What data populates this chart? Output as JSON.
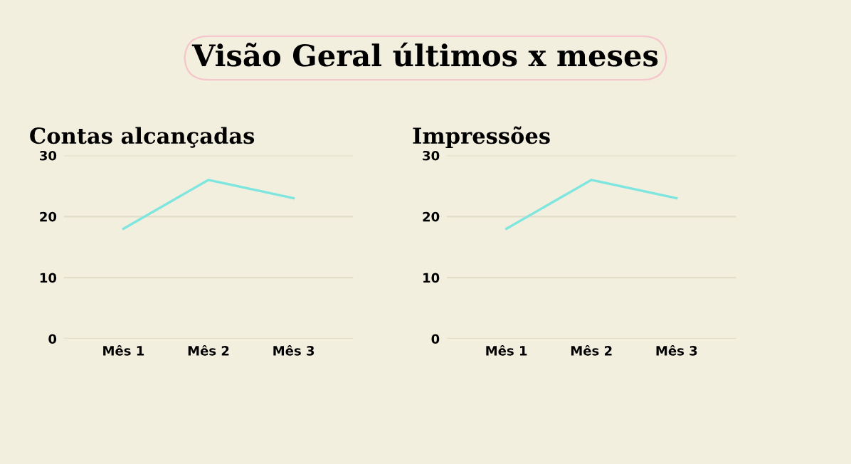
{
  "chart_data": [
    {
      "type": "other",
      "title": "Visão Geral últimos x meses"
    },
    {
      "type": "line",
      "title": "Contas alcançadas",
      "categories": [
        "Mês 1",
        "Mês 2",
        "Mês 3"
      ],
      "series": [
        {
          "color": "#7ee6df",
          "values": [
            18,
            26,
            23
          ]
        }
      ],
      "ylim": [
        0,
        30
      ],
      "yticks": [
        0,
        10,
        20,
        30
      ],
      "grid": "y",
      "legend": false
    },
    {
      "type": "line",
      "title": "Impressões",
      "categories": [
        "Mês 1",
        "Mês 2",
        "Mês 3"
      ],
      "series": [
        {
          "color": "#7ee6df",
          "values": [
            18,
            26,
            23
          ]
        }
      ],
      "ylim": [
        0,
        30
      ],
      "yticks": [
        0,
        10,
        20,
        30
      ],
      "grid": "y",
      "legend": false
    }
  ]
}
